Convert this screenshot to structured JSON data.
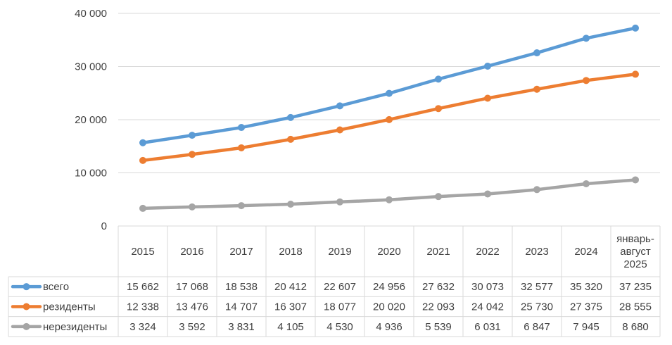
{
  "chart_data": {
    "type": "line",
    "title": "",
    "xlabel": "",
    "ylabel": "",
    "ylim": [
      0,
      40000
    ],
    "yticks": [
      "0",
      "10 000",
      "20 000",
      "30 000",
      "40 000"
    ],
    "grid": true,
    "legend": "data-table-left",
    "categories": [
      "2015",
      "2016",
      "2017",
      "2018",
      "2019",
      "2020",
      "2021",
      "2022",
      "2023",
      "2024",
      "январь-август 2025"
    ],
    "category_lines": [
      [
        "2015"
      ],
      [
        "2016"
      ],
      [
        "2017"
      ],
      [
        "2018"
      ],
      [
        "2019"
      ],
      [
        "2020"
      ],
      [
        "2021"
      ],
      [
        "2022"
      ],
      [
        "2023"
      ],
      [
        "2024"
      ],
      [
        "январь-",
        "август",
        "2025"
      ]
    ],
    "series": [
      {
        "name": "всего",
        "color": "#5B9BD5",
        "values": [
          15662,
          17068,
          18538,
          20412,
          22607,
          24956,
          27632,
          30073,
          32577,
          35320,
          37235
        ],
        "labels": [
          "15 662",
          "17 068",
          "18 538",
          "20 412",
          "22 607",
          "24 956",
          "27 632",
          "30 073",
          "32 577",
          "35 320",
          "37 235"
        ]
      },
      {
        "name": "резиденты",
        "color": "#ED7D31",
        "values": [
          12338,
          13476,
          14707,
          16307,
          18077,
          20020,
          22093,
          24042,
          25730,
          27375,
          28555
        ],
        "labels": [
          "12 338",
          "13 476",
          "14 707",
          "16 307",
          "18 077",
          "20 020",
          "22 093",
          "24 042",
          "25 730",
          "27 375",
          "28 555"
        ]
      },
      {
        "name": "нерезиденты",
        "color": "#A5A5A5",
        "values": [
          3324,
          3592,
          3831,
          4105,
          4530,
          4936,
          5539,
          6031,
          6847,
          7945,
          8680
        ],
        "labels": [
          "3 324",
          "3 592",
          "3 831",
          "4 105",
          "4 530",
          "4 936",
          "5 539",
          "6 031",
          "6 847",
          "7 945",
          "8 680"
        ]
      }
    ]
  }
}
